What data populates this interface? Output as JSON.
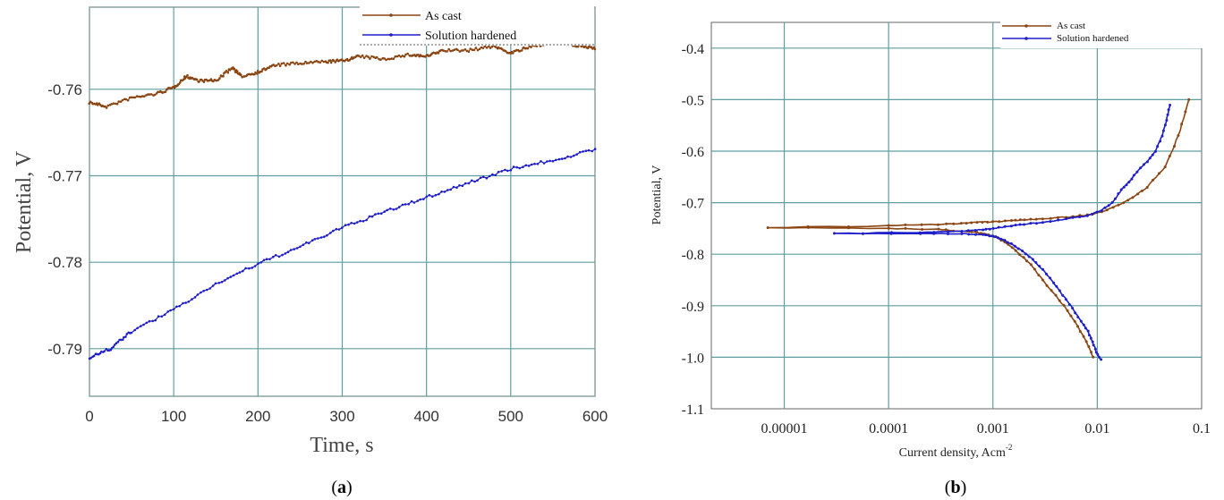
{
  "chart_data": [
    {
      "type": "line",
      "panel_label": "a",
      "xlabel": "Time, s",
      "ylabel": "Potential, V",
      "xlim": [
        0,
        600
      ],
      "ylim": [
        -0.7955,
        -0.7505
      ],
      "x_ticks": [
        "0",
        "100",
        "200",
        "300",
        "400",
        "500",
        "600"
      ],
      "y_ticks": [
        "-0.76",
        "-0.77",
        "-0.78",
        "-0.79"
      ],
      "grid": true,
      "legend_position": "top-right",
      "series": [
        {
          "name": "As cast",
          "color": "#8b4513",
          "x": [
            0,
            20,
            50,
            80,
            100,
            115,
            130,
            150,
            170,
            180,
            200,
            220,
            250,
            280,
            300,
            320,
            350,
            380,
            400,
            420,
            450,
            480,
            500,
            520,
            550,
            580,
            600
          ],
          "y": [
            -0.7615,
            -0.762,
            -0.761,
            -0.7605,
            -0.7598,
            -0.7585,
            -0.759,
            -0.759,
            -0.7575,
            -0.7585,
            -0.758,
            -0.7572,
            -0.757,
            -0.7568,
            -0.7567,
            -0.7562,
            -0.7565,
            -0.756,
            -0.7562,
            -0.7555,
            -0.7555,
            -0.755,
            -0.7558,
            -0.7552,
            -0.7545,
            -0.755,
            -0.7552
          ]
        },
        {
          "name": "Solution hardened",
          "color": "#1e1ec8",
          "x": [
            0,
            25,
            50,
            100,
            150,
            200,
            250,
            300,
            350,
            400,
            450,
            500,
            550,
            600
          ],
          "y": [
            -0.791,
            -0.79,
            -0.788,
            -0.7855,
            -0.7825,
            -0.7802,
            -0.7782,
            -0.776,
            -0.7742,
            -0.7725,
            -0.7708,
            -0.7692,
            -0.7682,
            -0.767
          ]
        }
      ]
    },
    {
      "type": "line",
      "panel_label": "b",
      "xlabel": "Current density, Acm",
      "xlabel_superscript": "-2",
      "ylabel": "Potential, V",
      "x_scale": "log",
      "xlim": [
        2e-06,
        0.1
      ],
      "ylim": [
        -1.1,
        -0.35
      ],
      "x_ticks": [
        "0.00001",
        "0.0001",
        "0.001",
        "0.01",
        "0.1"
      ],
      "y_ticks": [
        "-0.4",
        "-0.5",
        "-0.6",
        "-0.7",
        "-0.8",
        "-0.9",
        "-1.0",
        "-1.1"
      ],
      "grid": true,
      "legend_position": "top-right",
      "series": [
        {
          "name": "As cast",
          "color": "#8b4513",
          "x": [
            0.0092,
            0.0078,
            0.0065,
            0.0052,
            0.004,
            0.003,
            0.0023,
            0.0018,
            0.0014,
            0.0011,
            0.0009,
            0.0007,
            0.0005,
            0.0003,
            0.0001,
            7e-06,
            0.0001,
            0.0003,
            0.0005,
            0.0007,
            0.001,
            0.0015,
            0.002,
            0.003,
            0.005,
            0.008,
            0.011,
            0.016,
            0.022,
            0.03,
            0.045,
            0.06,
            0.075
          ],
          "y": [
            -1.0,
            -0.97,
            -0.94,
            -0.91,
            -0.88,
            -0.85,
            -0.82,
            -0.8,
            -0.78,
            -0.768,
            -0.762,
            -0.758,
            -0.755,
            -0.752,
            -0.75,
            -0.748,
            -0.745,
            -0.742,
            -0.74,
            -0.738,
            -0.737,
            -0.735,
            -0.733,
            -0.731,
            -0.728,
            -0.724,
            -0.718,
            -0.705,
            -0.69,
            -0.67,
            -0.63,
            -0.57,
            -0.5
          ]
        },
        {
          "name": "Solution hardened",
          "color": "#1e1ec8",
          "x": [
            0.0108,
            0.0098,
            0.009,
            0.0082,
            0.007,
            0.0058,
            0.0047,
            0.0038,
            0.003,
            0.0024,
            0.0019,
            0.0015,
            0.0012,
            0.001,
            0.0008,
            0.0005,
            0.0002,
            3e-05,
            0.0002,
            0.0005,
            0.0008,
            0.001,
            0.0015,
            0.002,
            0.003,
            0.005,
            0.008,
            0.011,
            0.014,
            0.017,
            0.02,
            0.024,
            0.03,
            0.036,
            0.042,
            0.046,
            0.05
          ],
          "y": [
            -1.005,
            -0.99,
            -0.97,
            -0.95,
            -0.93,
            -0.905,
            -0.88,
            -0.855,
            -0.83,
            -0.81,
            -0.793,
            -0.78,
            -0.77,
            -0.765,
            -0.762,
            -0.76,
            -0.76,
            -0.76,
            -0.758,
            -0.755,
            -0.752,
            -0.75,
            -0.745,
            -0.742,
            -0.738,
            -0.732,
            -0.725,
            -0.715,
            -0.7,
            -0.675,
            -0.66,
            -0.64,
            -0.62,
            -0.6,
            -0.57,
            -0.54,
            -0.51
          ]
        }
      ]
    }
  ]
}
